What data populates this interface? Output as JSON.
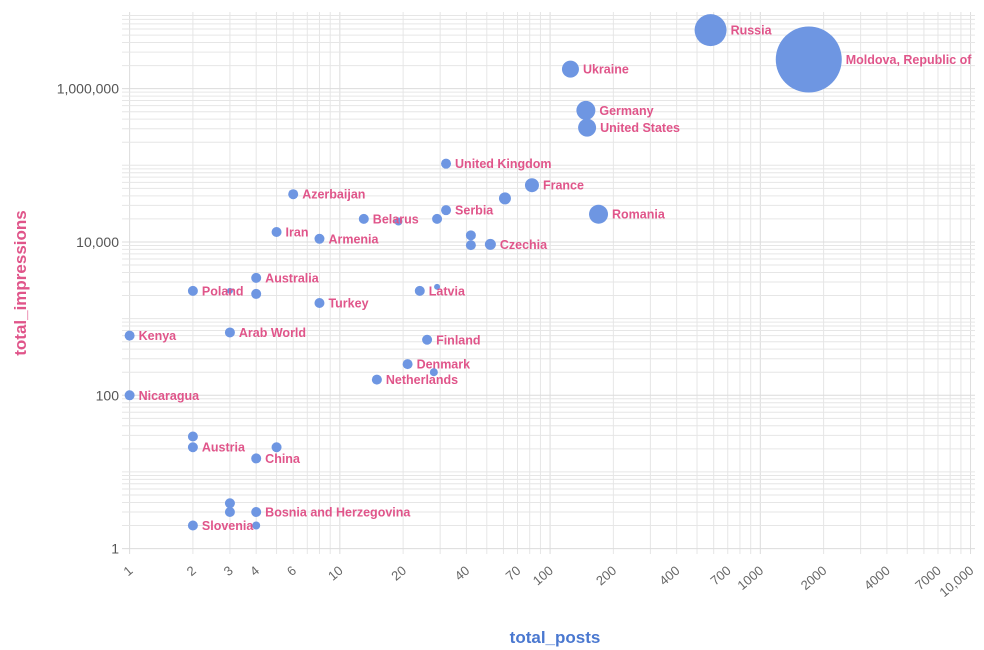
{
  "chart_data": {
    "type": "scatter",
    "xlabel": "total_posts",
    "ylabel": "total_impressions",
    "xscale": "log",
    "yscale": "log",
    "xlim": [
      0.92,
      10500
    ],
    "ylim": [
      0.85,
      10000000
    ],
    "grid": true,
    "colors": {
      "point": "#6e96e2",
      "label": "#e0558a",
      "xlabel": "#4a78d0",
      "ylabel": "#e0558a"
    },
    "x_ticks": [
      {
        "value": 1,
        "label": "1"
      },
      {
        "value": 2,
        "label": "2"
      },
      {
        "value": 3,
        "label": "3"
      },
      {
        "value": 4,
        "label": "4"
      },
      {
        "value": 6,
        "label": "6"
      },
      {
        "value": 10,
        "label": "10"
      },
      {
        "value": 20,
        "label": "20"
      },
      {
        "value": 40,
        "label": "40"
      },
      {
        "value": 70,
        "label": "70"
      },
      {
        "value": 100,
        "label": "100"
      },
      {
        "value": 200,
        "label": "200"
      },
      {
        "value": 400,
        "label": "400"
      },
      {
        "value": 700,
        "label": "700"
      },
      {
        "value": 1000,
        "label": "1000"
      },
      {
        "value": 2000,
        "label": "2000"
      },
      {
        "value": 4000,
        "label": "4000"
      },
      {
        "value": 7000,
        "label": "7000"
      },
      {
        "value": 10000,
        "label": "10,000"
      }
    ],
    "y_ticks": [
      {
        "value": 1,
        "label": "1"
      },
      {
        "value": 100,
        "label": "100"
      },
      {
        "value": 10000,
        "label": "10,000"
      },
      {
        "value": 1000000,
        "label": "1,000,000"
      }
    ],
    "points": [
      {
        "label": "Russia",
        "x": 580,
        "y": 5800000,
        "r": 16
      },
      {
        "label": "Moldova, Republic of",
        "x": 1700,
        "y": 2400000,
        "r": 33
      },
      {
        "label": "Ukraine",
        "x": 125,
        "y": 1800000,
        "r": 8.5
      },
      {
        "label": "Germany",
        "x": 148,
        "y": 520000,
        "r": 9.5
      },
      {
        "label": "United States",
        "x": 150,
        "y": 310000,
        "r": 9
      },
      {
        "label": "United Kingdom",
        "x": 32,
        "y": 105000,
        "r": 5
      },
      {
        "label": "France",
        "x": 82,
        "y": 55000,
        "r": 7
      },
      {
        "label": "",
        "x": 61,
        "y": 37000,
        "r": 6
      },
      {
        "label": "Azerbaijan",
        "x": 6,
        "y": 42000,
        "r": 5
      },
      {
        "label": "Serbia",
        "x": 32,
        "y": 26000,
        "r": 5
      },
      {
        "label": "",
        "x": 29,
        "y": 20000,
        "r": 5
      },
      {
        "label": "Belarus",
        "x": 13,
        "y": 20000,
        "r": 5
      },
      {
        "label": "",
        "x": 19,
        "y": 18500,
        "r": 4
      },
      {
        "label": "Romania",
        "x": 170,
        "y": 23000,
        "r": 9.5
      },
      {
        "label": "Iran",
        "x": 5,
        "y": 13500,
        "r": 5
      },
      {
        "label": "Armenia",
        "x": 8,
        "y": 11000,
        "r": 5
      },
      {
        "label": "",
        "x": 42,
        "y": 12200,
        "r": 5
      },
      {
        "label": "",
        "x": 42,
        "y": 9100,
        "r": 5
      },
      {
        "label": "Czechia",
        "x": 52,
        "y": 9300,
        "r": 5.5
      },
      {
        "label": "Australia",
        "x": 4,
        "y": 3400,
        "r": 5
      },
      {
        "label": "Poland",
        "x": 2,
        "y": 2300,
        "r": 5
      },
      {
        "label": "",
        "x": 3,
        "y": 2300,
        "r": 3
      },
      {
        "label": "",
        "x": 4,
        "y": 2100,
        "r": 5
      },
      {
        "label": "Turkey",
        "x": 8,
        "y": 1600,
        "r": 5
      },
      {
        "label": "Latvia",
        "x": 24,
        "y": 2300,
        "r": 5
      },
      {
        "label": "",
        "x": 29,
        "y": 2600,
        "r": 3
      },
      {
        "label": "Kenya",
        "x": 1,
        "y": 600,
        "r": 5
      },
      {
        "label": "Arab World",
        "x": 3,
        "y": 660,
        "r": 5
      },
      {
        "label": "Finland",
        "x": 26,
        "y": 530,
        "r": 5
      },
      {
        "label": "Denmark",
        "x": 21,
        "y": 255,
        "r": 5
      },
      {
        "label": "",
        "x": 28,
        "y": 200,
        "r": 4
      },
      {
        "label": "Netherlands",
        "x": 15,
        "y": 160,
        "r": 5
      },
      {
        "label": "Nicaragua",
        "x": 1,
        "y": 100,
        "r": 5
      },
      {
        "label": "",
        "x": 2,
        "y": 29,
        "r": 5
      },
      {
        "label": "Austria",
        "x": 2,
        "y": 21,
        "r": 5
      },
      {
        "label": "",
        "x": 5,
        "y": 21,
        "r": 5
      },
      {
        "label": "China",
        "x": 4,
        "y": 15,
        "r": 5
      },
      {
        "label": "",
        "x": 3,
        "y": 3.9,
        "r": 5
      },
      {
        "label": "",
        "x": 3,
        "y": 3.0,
        "r": 5
      },
      {
        "label": "Bosnia and Herzegovina",
        "x": 4,
        "y": 3.0,
        "r": 5
      },
      {
        "label": "Slovenia",
        "x": 2,
        "y": 2.0,
        "r": 5
      },
      {
        "label": "",
        "x": 4,
        "y": 2.0,
        "r": 4
      }
    ]
  }
}
